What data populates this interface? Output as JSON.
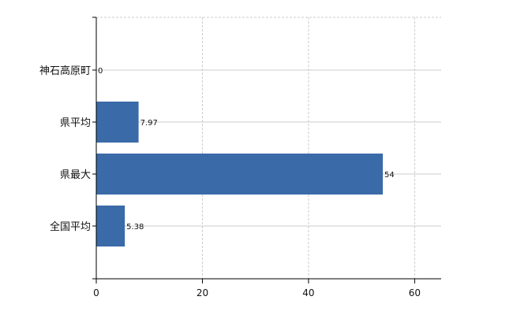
{
  "chart_data": {
    "type": "bar",
    "orientation": "horizontal",
    "categories": [
      "神石高原町",
      "県平均",
      "県最大",
      "全国平均"
    ],
    "values": [
      0,
      7.97,
      54,
      5.38
    ],
    "data_labels": [
      "0",
      "7.97",
      "54",
      "5.38"
    ],
    "title": "",
    "xlabel": "",
    "ylabel": "",
    "xlim": [
      0,
      65
    ],
    "x_ticks": [
      0,
      20,
      40,
      60
    ],
    "grid": true,
    "legend": "none",
    "bar_color": "#3a6aa8",
    "grid_color": "#cccccc"
  }
}
